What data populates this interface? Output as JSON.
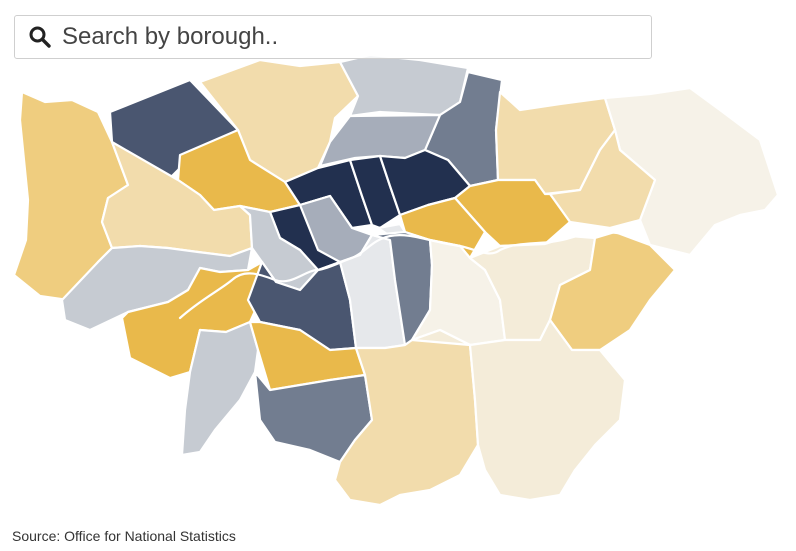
{
  "search": {
    "placeholder": "Search by borough.."
  },
  "map": {
    "scale_colors": {
      "navy": "#22304f",
      "dark_slate": "#4a5670",
      "slate": "#727d90",
      "grey": "#a6adba",
      "light_grey": "#c6cbd2",
      "pale_grey": "#e6e8eb",
      "gold": "#e9b94b",
      "yellow": "#efcd7f",
      "light_yellow": "#f2dcac",
      "cream": "#f4ecd9",
      "pale_cream": "#f6f2e8"
    },
    "thames_color": "#ffffff"
  },
  "footer": {
    "source": "Source: Office for National Statistics"
  }
}
